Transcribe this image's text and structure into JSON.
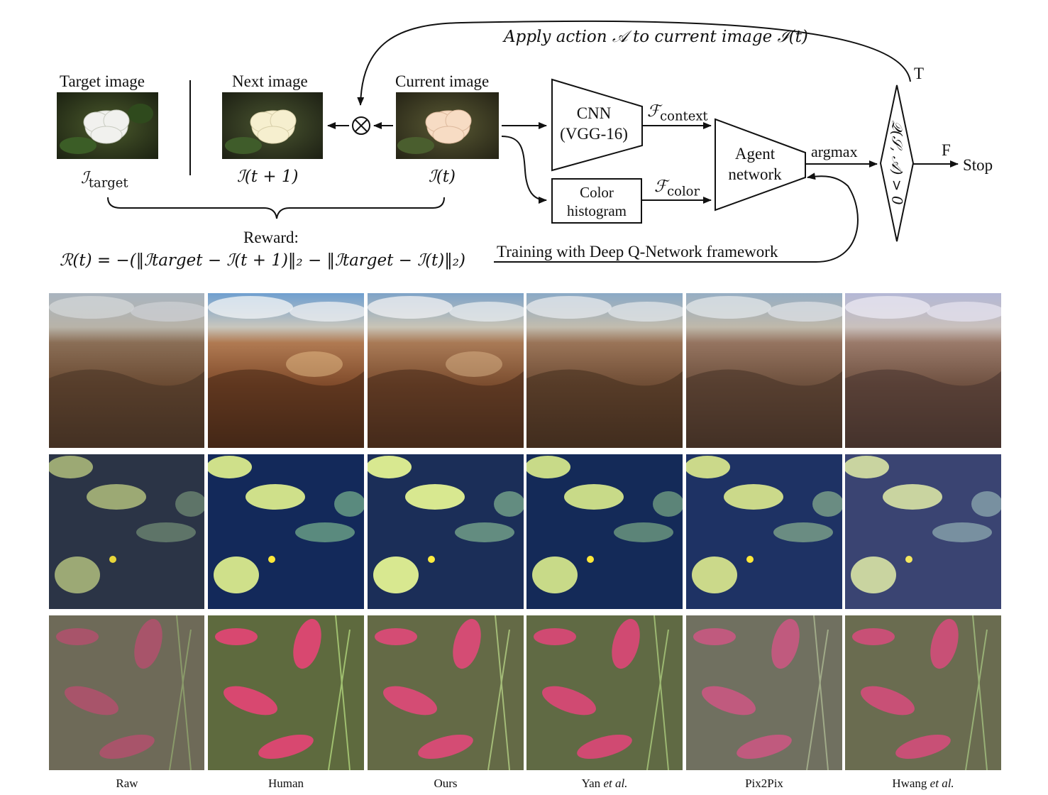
{
  "diagram": {
    "apply_action_label": "Apply action 𝒜 to current image ℐ(t)",
    "target_image_title": "Target image",
    "next_image_title": "Next image",
    "current_image_title": "Current image",
    "target_symbol": "ℐ",
    "target_sub": "target",
    "next_symbol": "ℐ(t + 1)",
    "current_symbol": "ℐ(t)",
    "combine_symbol": "⊗",
    "cnn_line1": "CNN",
    "cnn_line2": "(VGG-16)",
    "hist_line1": "Color",
    "hist_line2": "histogram",
    "f_context_symbol": "ℱ",
    "f_context_sub": "context",
    "f_color_symbol": "ℱ",
    "f_color_sub": "color",
    "agent_line1": "Agent",
    "agent_line2": "network",
    "argmax_label": "argmax",
    "decision_text": "𝒬(𝒮, 𝒜) > 0",
    "true_label": "T",
    "false_label": "F",
    "stop_label": "Stop",
    "reward_title": "Reward:",
    "reward_formula": "ℛ(t) = −(‖ℐtarget − ℐ(t + 1)‖₂ − ‖ℐtarget − ℐ(t)‖₂)",
    "training_label": "Training with Deep Q-Network framework"
  },
  "comparison": {
    "columns": [
      {
        "label": "Raw",
        "suffix": ""
      },
      {
        "label": "Human",
        "suffix": ""
      },
      {
        "label": "Ours",
        "suffix": ""
      },
      {
        "label": "Yan ",
        "suffix": "et al."
      },
      {
        "label": "Pix2Pix",
        "suffix": ""
      },
      {
        "label": "Hwang ",
        "suffix": "et al."
      }
    ],
    "rows": [
      "canyon",
      "lily-pads",
      "red-leaves"
    ]
  }
}
